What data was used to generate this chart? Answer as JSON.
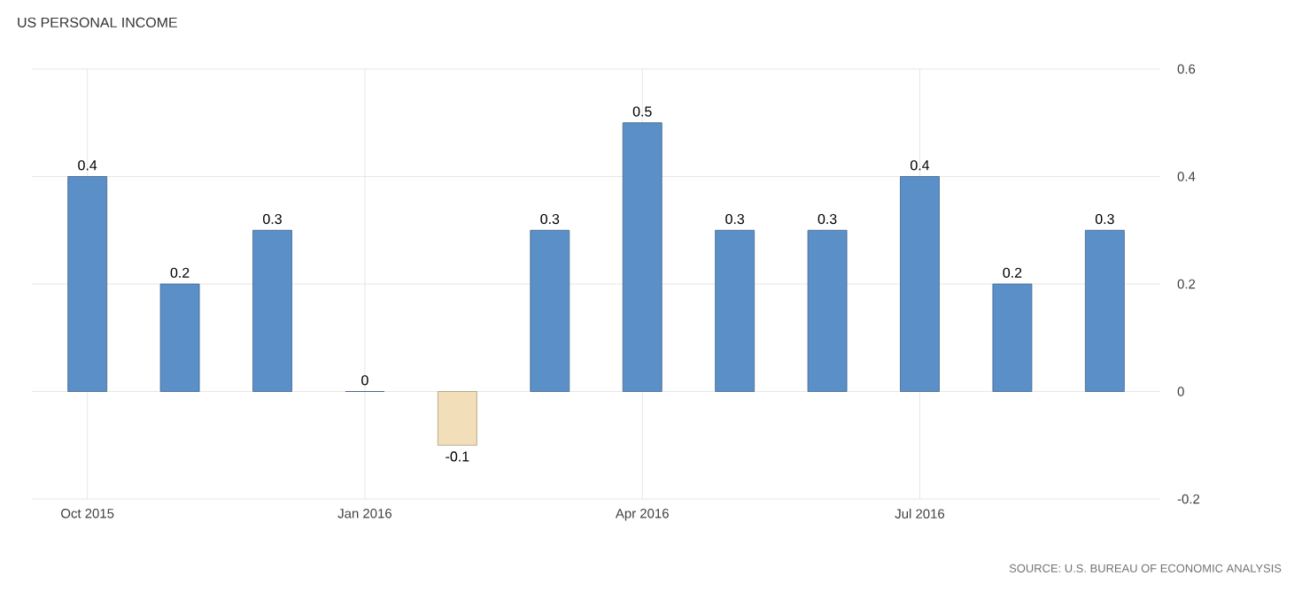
{
  "chart_data": {
    "type": "bar",
    "title": "US PERSONAL INCOME",
    "categories": [
      "Oct 2015",
      null,
      null,
      "Jan 2016",
      null,
      null,
      "Apr 2016",
      null,
      null,
      "Jul 2016",
      null,
      null
    ],
    "values": [
      0.4,
      0.2,
      0.3,
      0,
      -0.1,
      0.3,
      0.5,
      0.3,
      0.3,
      0.4,
      0.2,
      0.3
    ],
    "colors": [
      "#5b8fc7",
      "#5b8fc7",
      "#5b8fc7",
      "#5b8fc7",
      "#f2dfb9",
      "#5b8fc7",
      "#5b8fc7",
      "#5b8fc7",
      "#5b8fc7",
      "#5b8fc7",
      "#5b8fc7",
      "#5b8fc7"
    ],
    "ylim": [
      -0.2,
      0.6
    ],
    "yticks": [
      -0.2,
      0,
      0.2,
      0.4,
      0.6
    ],
    "grid": true,
    "data_labels": true,
    "annotations": [
      "SOURCE: U.S. BUREAU OF ECONOMIC ANALYSIS"
    ]
  }
}
